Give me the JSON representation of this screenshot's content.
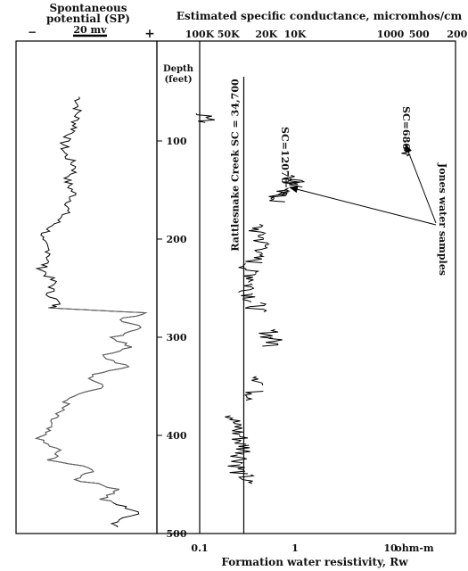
{
  "chart_data": [
    {
      "type": "line",
      "panel": "sp",
      "title_line1": "Spontaneous",
      "title_line2": "potential (SP)",
      "scale_minus": "−",
      "scale_plus": "+",
      "scale_label": "20 mv",
      "depth_ylabel_line1": "Depth",
      "depth_ylabel_line2": "(feet)",
      "ylim": [
        0,
        500
      ],
      "yticks": [
        "100",
        "200",
        "300",
        "400",
        "500"
      ],
      "line_colors": [
        "#000000",
        "#666666"
      ],
      "sp_deflection": {
        "depth": [
          55,
          75,
          90,
          100,
          112,
          128,
          140,
          155,
          175,
          190,
          200,
          215,
          230,
          245,
          255,
          265,
          270,
          275,
          282,
          290,
          300,
          310,
          320,
          330,
          340,
          350,
          360,
          370,
          380,
          395,
          405,
          415,
          425,
          435,
          445,
          455,
          465,
          478,
          490,
          495
        ],
        "value": [
          0.42,
          0.4,
          0.38,
          0.3,
          0.3,
          0.4,
          0.32,
          0.38,
          0.3,
          0.18,
          0.1,
          0.2,
          0.12,
          0.22,
          0.18,
          0.25,
          0.2,
          0.95,
          0.75,
          0.95,
          0.7,
          0.85,
          0.6,
          0.8,
          0.5,
          0.65,
          0.35,
          0.3,
          0.22,
          0.15,
          0.1,
          0.25,
          0.2,
          0.55,
          0.4,
          0.75,
          0.6,
          0.9,
          0.7,
          0.75
        ]
      }
    },
    {
      "type": "scatter",
      "panel": "resistivity",
      "top_title": "Estimated specific conductance, micromhos/cm",
      "top_ticks": [
        "100K",
        "50K",
        "20K",
        "10K",
        "1000",
        "500",
        "200"
      ],
      "top_tick_rw": [
        0.1,
        0.2,
        0.5,
        1,
        10,
        20,
        50
      ],
      "xlabel": "Formation water resistivity, Rw",
      "x_unit": "ohm-m",
      "x_scale": "log",
      "xlim": [
        0.1,
        50
      ],
      "xticks": [
        "0.1",
        "1",
        "10"
      ],
      "xtick_values": [
        0.1,
        1,
        10
      ],
      "ylim": [
        0,
        500
      ],
      "reference_line": {
        "label": "Rattlesnake Creek SC = 34,700",
        "rw": 0.29
      },
      "annotations": {
        "sample1": "SC=686",
        "sample2": "SC=12070",
        "group_label": "Jones water samples"
      },
      "rw_points": {
        "depth": [
          72,
          135,
          138,
          150,
          153,
          185,
          195,
          205,
          215,
          225,
          235,
          245,
          255,
          265,
          292,
          300,
          340,
          355,
          380,
          390,
          400,
          410,
          420,
          430,
          440
        ],
        "rw": [
          0.12,
          1.05,
          1.0,
          0.68,
          0.65,
          0.4,
          0.45,
          0.48,
          0.38,
          0.33,
          0.37,
          0.34,
          0.36,
          0.4,
          0.55,
          0.6,
          0.45,
          0.38,
          0.23,
          0.25,
          0.27,
          0.3,
          0.28,
          0.26,
          0.3
        ]
      },
      "samples": [
        {
          "label": "SC=686",
          "depth": 108,
          "rw": 14.5
        },
        {
          "label": "SC=12070",
          "depth": 148,
          "rw": 0.83
        }
      ]
    }
  ]
}
